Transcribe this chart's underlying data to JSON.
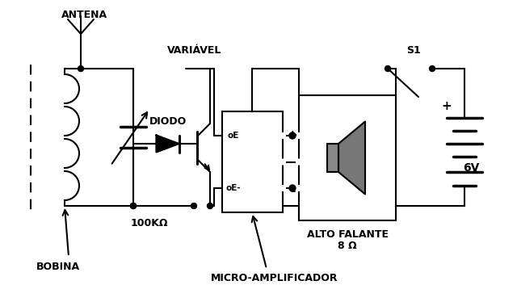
{
  "bg_color": "#ffffff",
  "fg_color": "#000000",
  "labels": {
    "antena": "ANTENA",
    "variavel": "VARIÁVEL",
    "diodo": "DIODO",
    "resistor": "100KΩ",
    "bobina": "BOBINA",
    "micro_amp": "MICRO-AMPLIFICADOR",
    "alto_falante_1": "ALTO FALANTE",
    "alto_falante_2": "8 Ω",
    "switch": "S1",
    "voltage": "6V",
    "plus_bat": "+",
    "plus_out": "+",
    "minus_out": "-",
    "oE": "oE",
    "oEminus": "oE-"
  }
}
